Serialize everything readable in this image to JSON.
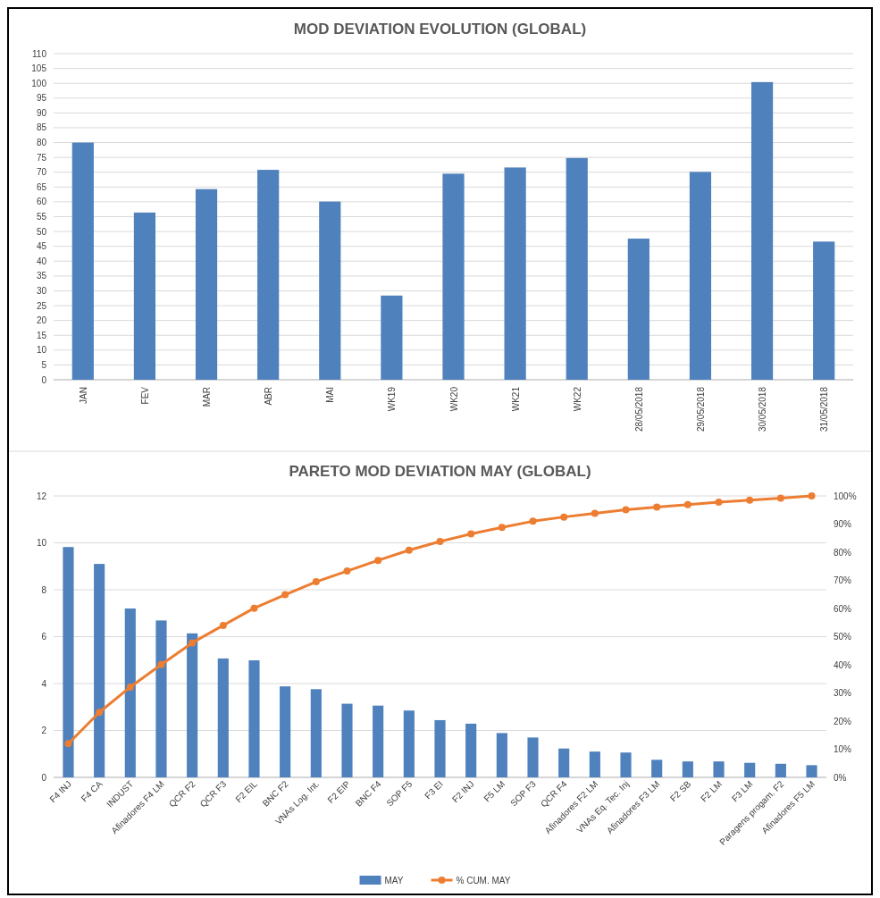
{
  "chart_data": [
    {
      "type": "bar",
      "title": "MOD DEVIATION EVOLUTION (GLOBAL)",
      "categories": [
        "JAN",
        "FEV",
        "MAR",
        "ABR",
        "MAI",
        "WK19",
        "WK20",
        "WK21",
        "WK22",
        "28/05/2018",
        "29/05/2018",
        "30/05/2018",
        "31/05/2018"
      ],
      "series": [
        {
          "color": "#4f81bd",
          "values": [
            80.0,
            56.4,
            64.3,
            70.8,
            60.1,
            28.4,
            69.5,
            71.6,
            74.8,
            47.6,
            70.1,
            100.4,
            46.6
          ]
        }
      ],
      "ylim": [
        0,
        110
      ],
      "yticks": [
        0,
        5,
        10,
        15,
        20,
        25,
        30,
        35,
        40,
        45,
        50,
        55,
        60,
        65,
        70,
        75,
        80,
        85,
        90,
        95,
        100,
        105,
        110
      ],
      "grid": "y",
      "legend": false
    },
    {
      "type": "bar",
      "title": "PARETO MOD DEVIATION MAY (GLOBAL)",
      "categories": [
        "F4 INJ",
        "F4 CA",
        "INDUST",
        "Afinadores F4 LM",
        "QCR F2",
        "QCR F3",
        "F2 EIL",
        "BNC F2",
        "VNAs Log. Int.",
        "F2 EIP",
        "BNC F4",
        "SOP F5",
        "F3 EI",
        "F2 INJ",
        "F5 LM",
        "SOP F3",
        "QCR F4",
        "Afinadores F2 LM",
        "VNAs Eq. Tec. Inj",
        "Afinadores F3 LM",
        "F2 SB",
        "F2 LM",
        "F3 LM",
        "Paragens progam. F2",
        "Afinadores F5 LM"
      ],
      "series": [
        {
          "name": "MAY",
          "type": "bar",
          "color": "#4f81bd",
          "values": [
            9.82,
            9.1,
            7.2,
            6.69,
            6.14,
            5.07,
            4.99,
            3.88,
            3.76,
            3.14,
            3.06,
            2.85,
            2.44,
            2.29,
            1.89,
            1.7,
            1.23,
            1.1,
            1.06,
            0.75,
            0.68,
            0.68,
            0.62,
            0.58,
            0.52
          ]
        },
        {
          "name": "% CUM. MAY",
          "type": "line",
          "axis": "y2",
          "color": "#ed7d31",
          "values": [
            12.0,
            23.1,
            32.1,
            40.1,
            47.8,
            54.0,
            60.1,
            64.9,
            69.5,
            73.3,
            77.1,
            80.7,
            83.8,
            86.5,
            88.8,
            91.0,
            92.5,
            93.8,
            95.1,
            96.0,
            96.9,
            97.8,
            98.5,
            99.2,
            100
          ]
        }
      ],
      "ylim": [
        0,
        12
      ],
      "yticks": [
        0,
        2,
        4,
        6,
        8,
        10,
        12
      ],
      "y2lim": [
        0,
        100
      ],
      "y2ticks": [
        {
          "value": 0,
          "label": "0%"
        },
        {
          "value": 10,
          "label": "10%"
        },
        {
          "value": 20,
          "label": "20%"
        },
        {
          "value": 30,
          "label": "30%"
        },
        {
          "value": 40,
          "label": "40%"
        },
        {
          "value": 50,
          "label": "50%"
        },
        {
          "value": 60,
          "label": "60%"
        },
        {
          "value": 70,
          "label": "70%"
        },
        {
          "value": 80,
          "label": "80%"
        },
        {
          "value": 90,
          "label": "90%"
        },
        {
          "value": 100,
          "label": "100%"
        }
      ],
      "grid": "y",
      "legend": "bottom",
      "marker": "circle",
      "line_style": "solid"
    }
  ]
}
